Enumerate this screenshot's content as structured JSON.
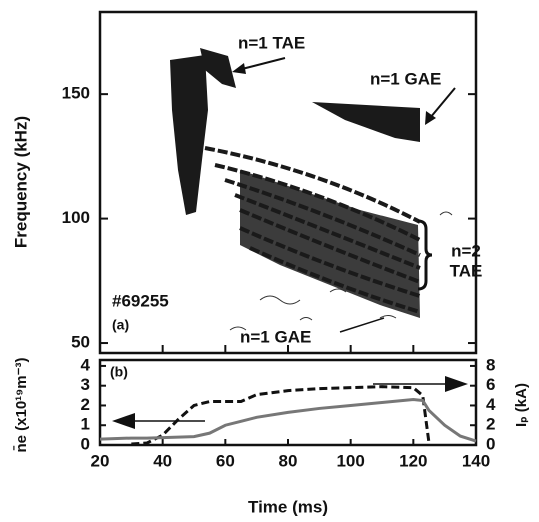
{
  "chart_data": [
    {
      "type": "contour",
      "ylabel": "Frequency (kHz)",
      "ylim": [
        46,
        183
      ],
      "yticks": [
        50,
        100,
        150
      ],
      "xlim": [
        20,
        140
      ],
      "annotations": [
        "n=1 TAE",
        "n=1 GAE",
        "n=2",
        "TAE",
        "n=1 GAE",
        "#69255",
        "(a)"
      ]
    },
    {
      "type": "line",
      "panel_label": "(b)",
      "xlabel": "Time (ms)",
      "ylabel": "n̄e (x10¹⁹m⁻³)",
      "y2label": "Iₚ (kA)",
      "xlim": [
        20,
        140
      ],
      "xticks": [
        20,
        40,
        60,
        80,
        100,
        120,
        140
      ],
      "ylim": [
        0,
        4.3
      ],
      "yticks": [
        0,
        1,
        2,
        3,
        4
      ],
      "y2lim": [
        0,
        8.6
      ],
      "y2ticks": [
        0,
        2,
        4,
        6,
        8
      ],
      "x": [
        20,
        30,
        35,
        40,
        45,
        50,
        55,
        60,
        65,
        70,
        80,
        90,
        100,
        110,
        120,
        123,
        125,
        130,
        135,
        140
      ],
      "series": [
        {
          "color": "#111111",
          "dash": true,
          "values": [
            null,
            0.05,
            0.1,
            0.5,
            1.3,
            2.0,
            2.2,
            2.2,
            2.2,
            2.55,
            2.75,
            2.85,
            2.9,
            2.95,
            2.9,
            2.5,
            0.1,
            null,
            null,
            null
          ]
        },
        {
          "color": "#777777",
          "axis": "y2",
          "values": [
            0.6,
            0.7,
            0.7,
            0.75,
            0.8,
            0.85,
            1.2,
            2.0,
            2.4,
            2.8,
            3.3,
            3.7,
            4.0,
            4.3,
            4.6,
            4.5,
            3.5,
            2.0,
            0.9,
            0.4
          ]
        }
      ]
    }
  ]
}
